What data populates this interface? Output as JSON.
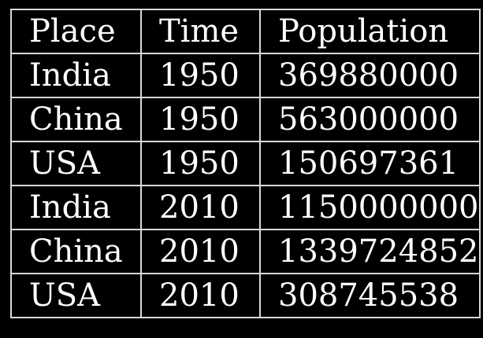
{
  "table": {
    "headers": [
      "Place",
      "Time",
      "Population"
    ],
    "rows": [
      [
        "India",
        "1950",
        "369880000"
      ],
      [
        "China",
        "1950",
        "563000000"
      ],
      [
        "USA",
        "1950",
        "150697361"
      ],
      [
        "India",
        "2010",
        "1150000000"
      ],
      [
        "China",
        "2010",
        "1339724852"
      ],
      [
        "USA",
        "2010",
        "308745538"
      ]
    ]
  },
  "colors": {
    "background": "#000000",
    "text": "#ffffff",
    "border": "#d9d9d9"
  }
}
